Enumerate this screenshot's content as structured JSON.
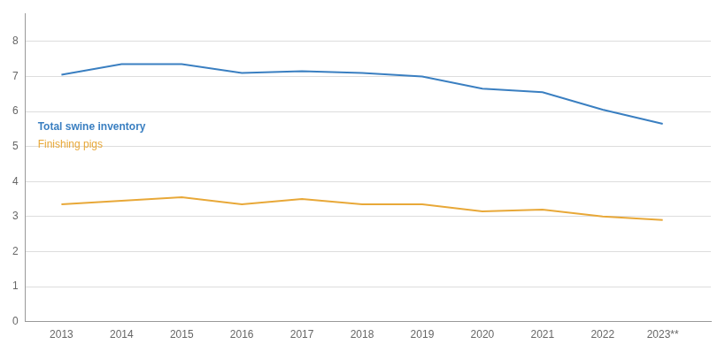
{
  "chart_data": {
    "type": "line",
    "x": [
      2013,
      2014,
      2015,
      2016,
      2017,
      2018,
      2019,
      2020,
      2021,
      2022,
      2023
    ],
    "series": [
      {
        "name": "Total swine inventory",
        "color": "#3A7FC1",
        "values": [
          7.05,
          7.35,
          7.35,
          7.1,
          7.15,
          7.1,
          7.0,
          6.65,
          6.55,
          6.05,
          5.65
        ]
      },
      {
        "name": "Finishing pigs",
        "color": "#E8A838",
        "values": [
          3.35,
          3.45,
          3.55,
          3.35,
          3.5,
          3.35,
          3.35,
          3.15,
          3.2,
          3.0,
          2.9
        ]
      }
    ],
    "xlim": [
      2012.4,
      2023.8
    ],
    "xticks": [
      2013,
      2014,
      2015,
      2016,
      2017,
      2018,
      2019,
      2020,
      2021,
      2022,
      {
        "value": 2023,
        "label": "2023**"
      }
    ],
    "ylim": [
      0,
      8.8
    ],
    "yticks": [
      0,
      1,
      2,
      3,
      4,
      5,
      6,
      7,
      8
    ],
    "grid": "y",
    "legend": "left"
  }
}
